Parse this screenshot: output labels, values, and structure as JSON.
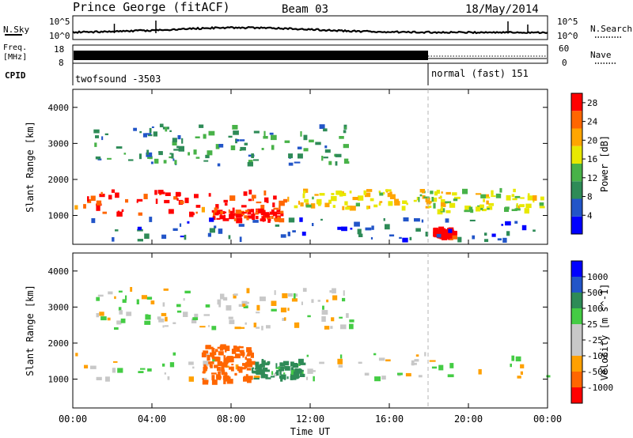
{
  "header": {
    "station": "Prince George (fitACF)",
    "beam": "Beam 03",
    "date": "18/May/2014"
  },
  "noise_panel": {
    "left_label": "N.Sky",
    "right_label": "N.Search",
    "ticks_left": [
      "10^5",
      "10^0"
    ],
    "ticks_right": [
      "10^5",
      "10^0"
    ]
  },
  "freq_panel": {
    "left_label_line1": "Freq.",
    "left_label_line2": "[MHz]",
    "right_label": "Nave",
    "ticks_left": [
      "18",
      "8"
    ],
    "ticks_right": [
      "60",
      "0"
    ]
  },
  "cpid_panel": {
    "label": "CPID",
    "segments": [
      {
        "name": "twofsound",
        "id": "-3503",
        "start_hour": 0,
        "end_hour": 18
      },
      {
        "name": "normal (fast)",
        "id": "151",
        "start_hour": 18,
        "end_hour": 24
      }
    ],
    "seg1_text": "twofsound  -3503",
    "seg2_text": "normal (fast) 151"
  },
  "time_axis": {
    "label": "Time UT",
    "ticks": [
      "00:00",
      "04:00",
      "08:00",
      "12:00",
      "16:00",
      "20:00",
      "00:00"
    ]
  },
  "colors": {
    "power": [
      "#0000ff",
      "#2255c8",
      "#2e8b57",
      "#48b248",
      "#e8e800",
      "#ffa500",
      "#ff6600",
      "#ff0000"
    ],
    "velocity": [
      "#ff0000",
      "#ff6600",
      "#ffa000",
      "#c8c8c8",
      "#c8c8c8",
      "#44cc44",
      "#2e8b57",
      "#2255c8",
      "#0000ff"
    ]
  },
  "chart_data": [
    {
      "type": "heatmap",
      "quantity": "Power",
      "ylabel": "Slant Range [km]",
      "xlabel": "Time UT",
      "xlim_hours": [
        0,
        24
      ],
      "ylim_km": [
        200,
        4500
      ],
      "yticks": [
        "1000",
        "2000",
        "3000",
        "4000"
      ],
      "colorbar_label": "Power [dB]",
      "colorbar_ticks": [
        "4",
        "8",
        "12",
        "16",
        "20",
        "24",
        "28"
      ],
      "colorbar_range": [
        0,
        30
      ],
      "features": [
        {
          "t0": 0.0,
          "t1": 11.0,
          "r0": 1000,
          "r1": 1700,
          "level": 26
        },
        {
          "t0": 11.0,
          "t1": 18.0,
          "r0": 1200,
          "r1": 1700,
          "level": 18
        },
        {
          "t0": 18.0,
          "t1": 24.0,
          "r0": 1100,
          "r1": 1700,
          "level": 16
        },
        {
          "t0": 7.0,
          "t1": 10.5,
          "r0": 850,
          "r1": 1150,
          "level": 28
        },
        {
          "t0": 18.2,
          "t1": 19.2,
          "r0": 380,
          "r1": 620,
          "level": 30
        },
        {
          "t0": 1.0,
          "t1": 14.0,
          "r0": 2400,
          "r1": 3500,
          "level": 10
        },
        {
          "t0": 0.0,
          "t1": 24.0,
          "r0": 300,
          "r1": 900,
          "level": 6
        }
      ]
    },
    {
      "type": "heatmap",
      "quantity": "Velocity",
      "ylabel": "Slant Range [km]",
      "xlabel": "Time UT",
      "xlim_hours": [
        0,
        24
      ],
      "ylim_km": [
        200,
        4500
      ],
      "yticks": [
        "1000",
        "2000",
        "3000",
        "4000"
      ],
      "colorbar_label": "Velocity [m s^-1]",
      "colorbar_ticks": [
        "1000",
        "500",
        "100",
        "25",
        "-25",
        "-100",
        "-500",
        "-1000"
      ],
      "features": [
        {
          "t0": 0.0,
          "t1": 24.0,
          "r0": 1000,
          "r1": 1700,
          "velocity": 0
        },
        {
          "t0": 6.5,
          "t1": 9.0,
          "r0": 900,
          "r1": 1900,
          "velocity": -400
        },
        {
          "t0": 9.0,
          "t1": 11.5,
          "r0": 1000,
          "r1": 1500,
          "velocity": 150
        },
        {
          "t0": 1.0,
          "t1": 14.0,
          "r0": 2400,
          "r1": 3500,
          "velocity": 0
        }
      ]
    }
  ]
}
